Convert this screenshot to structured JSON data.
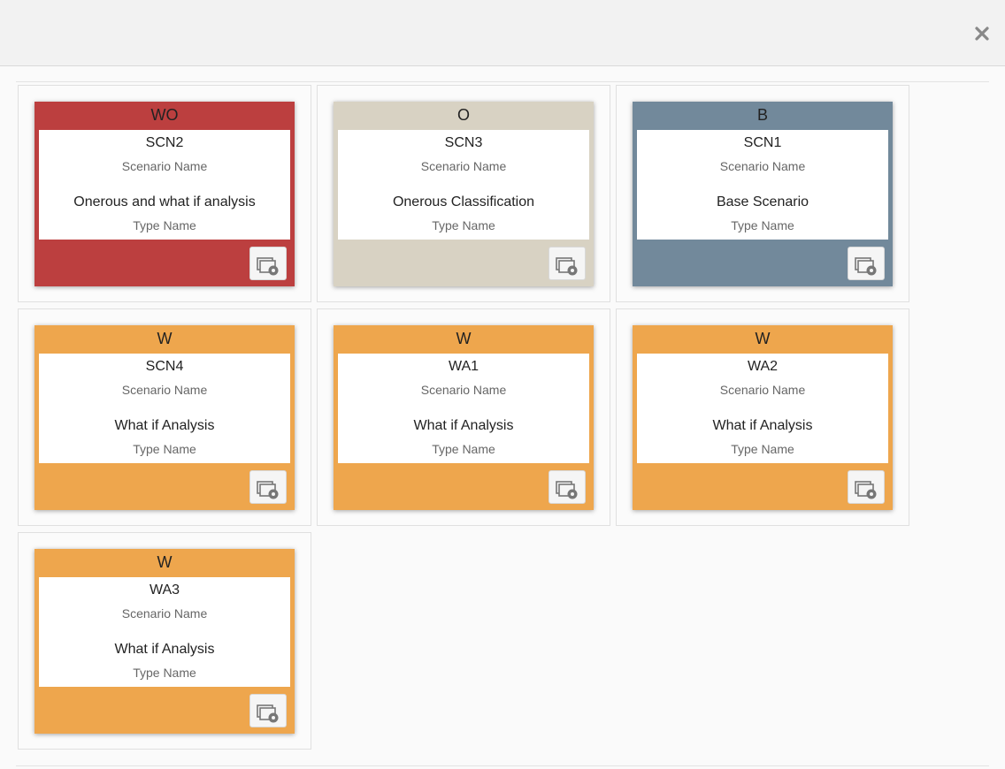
{
  "header": {
    "close_icon": "close-icon"
  },
  "colors": {
    "WO": "#bc3f3f",
    "O": "#d8d2c3",
    "B": "#72899b",
    "W": "#eea64d"
  },
  "scenarios": [
    {
      "code": "WO",
      "scenario_code": "SCN2",
      "scenario_label": "Scenario Name",
      "type_value": "Onerous and what if analysis",
      "type_label": "Type Name",
      "icon": "scenario-settings-icon"
    },
    {
      "code": "O",
      "scenario_code": "SCN3",
      "scenario_label": "Scenario Name",
      "type_value": "Onerous Classification",
      "type_label": "Type Name",
      "icon": "scenario-settings-icon"
    },
    {
      "code": "B",
      "scenario_code": "SCN1",
      "scenario_label": "Scenario Name",
      "type_value": "Base Scenario",
      "type_label": "Type Name",
      "icon": "scenario-settings-icon"
    },
    {
      "code": "W",
      "scenario_code": "SCN4",
      "scenario_label": "Scenario Name",
      "type_value": "What if Analysis",
      "type_label": "Type Name",
      "icon": "scenario-settings-icon"
    },
    {
      "code": "W",
      "scenario_code": "WA1",
      "scenario_label": "Scenario Name",
      "type_value": "What if Analysis",
      "type_label": "Type Name",
      "icon": "scenario-settings-icon"
    },
    {
      "code": "W",
      "scenario_code": "WA2",
      "scenario_label": "Scenario Name",
      "type_value": "What if Analysis",
      "type_label": "Type Name",
      "icon": "scenario-settings-icon"
    },
    {
      "code": "W",
      "scenario_code": "WA3",
      "scenario_label": "Scenario Name",
      "type_value": "What if Analysis",
      "type_label": "Type Name",
      "icon": "scenario-settings-icon"
    }
  ]
}
